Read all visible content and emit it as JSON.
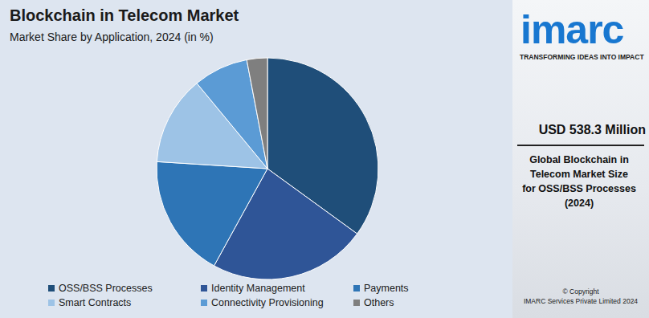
{
  "chart_data": {
    "type": "pie",
    "title": "Blockchain in Telecom Market",
    "subtitle": "Market Share by Application, 2024 (in %)",
    "categories": [
      "OSS/BSS Processes",
      "Identity Management",
      "Payments",
      "Smart Contracts",
      "Connectivity Provisioning",
      "Others"
    ],
    "values": [
      35,
      23,
      18,
      13,
      8,
      3
    ],
    "colors": [
      "#1f4e79",
      "#2f5597",
      "#2e75b6",
      "#9dc3e6",
      "#5b9bd5",
      "#7f7f7f"
    ],
    "legend": "bottom"
  },
  "panel": {
    "logo": "imarc",
    "tagline": "TRANSFORMING IDEAS INTO IMPACT",
    "headline": "USD 538.3 Million",
    "caption": [
      "Global Blockchain in",
      "Telecom Market Size",
      "for OSS/BSS Processes",
      "(2024)"
    ],
    "copyright": [
      "© Copyright",
      "IMARC Services Private Limited 2024"
    ]
  }
}
